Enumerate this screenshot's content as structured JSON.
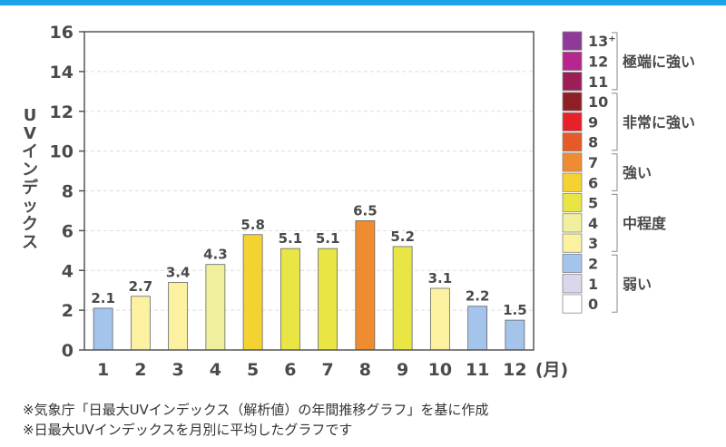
{
  "chart_data": {
    "type": "bar",
    "ylabel": "UVインデックス",
    "x_unit": "(月)",
    "categories": [
      "1",
      "2",
      "3",
      "4",
      "5",
      "6",
      "7",
      "8",
      "9",
      "10",
      "11",
      "12"
    ],
    "values": [
      2.1,
      2.7,
      3.4,
      4.3,
      5.8,
      5.1,
      5.1,
      6.5,
      5.2,
      3.1,
      2.2,
      1.5
    ],
    "data_labels": [
      "2.1",
      "2.7",
      "3.4",
      "4.3",
      "5.8",
      "5.1",
      "5.1",
      "6.5",
      "5.2",
      "3.1",
      "2.2",
      "1.5"
    ],
    "bar_colors": [
      "#a4c4ec",
      "#fbf1a0",
      "#fbf1a0",
      "#f0ef9e",
      "#f4d232",
      "#e8e545",
      "#e8e545",
      "#ef8c32",
      "#e8e545",
      "#fbf1a0",
      "#a4c4ec",
      "#a4c4ec"
    ],
    "ylim": [
      0,
      16
    ],
    "yticks": [
      0,
      2,
      4,
      6,
      8,
      10,
      12,
      14,
      16
    ],
    "grid": true,
    "legend": {
      "placement": "right",
      "swatches": [
        {
          "label": "13⁺",
          "color": "#8e3a96"
        },
        {
          "label": "12",
          "color": "#b6268e"
        },
        {
          "label": "11",
          "color": "#9c1e56"
        },
        {
          "label": "10",
          "color": "#8e2025"
        },
        {
          "label": "9",
          "color": "#e82128"
        },
        {
          "label": "8",
          "color": "#e65a27"
        },
        {
          "label": "7",
          "color": "#ef8c32"
        },
        {
          "label": "6",
          "color": "#f4d232"
        },
        {
          "label": "5",
          "color": "#e8e545"
        },
        {
          "label": "4",
          "color": "#f0ef9e"
        },
        {
          "label": "3",
          "color": "#fbf1a0"
        },
        {
          "label": "2",
          "color": "#a4c4ec"
        },
        {
          "label": "1",
          "color": "#dcd6ec"
        },
        {
          "label": "0",
          "color": "#ffffff"
        }
      ],
      "groups": [
        {
          "label": "極端に強い",
          "levels": [
            13,
            11
          ]
        },
        {
          "label": "非常に強い",
          "levels": [
            10,
            8
          ]
        },
        {
          "label": "強い",
          "levels": [
            7,
            6
          ]
        },
        {
          "label": "中程度",
          "levels": [
            5,
            3
          ]
        },
        {
          "label": "弱い",
          "levels": [
            2,
            0
          ]
        }
      ]
    }
  },
  "notes": [
    "※気象庁「日最大UVインデックス（解析値）の年間推移グラフ」を基に作成",
    "※日最大UVインデックスを月別に平均したグラフです"
  ]
}
